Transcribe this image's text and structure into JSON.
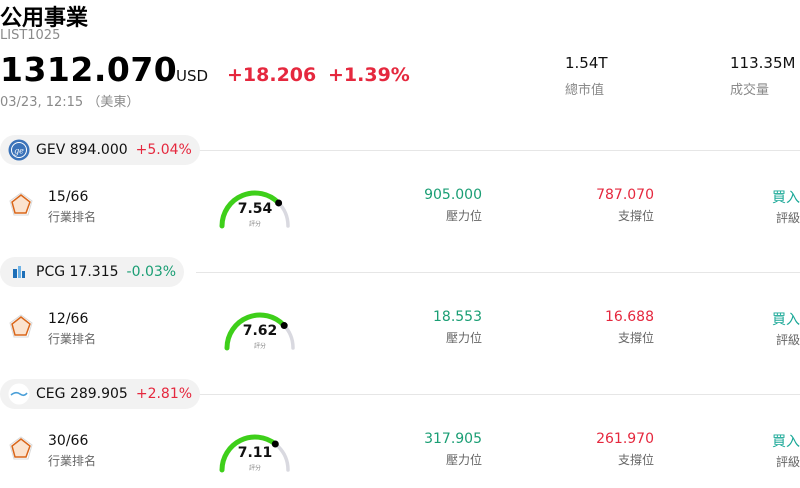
{
  "header": {
    "title": "公用事業",
    "code": "LIST1025",
    "price": "1312.070",
    "currency": "USD",
    "change": "+18.206",
    "change_pct": "+1.39%",
    "timestamp": "03/23, 12:15 （美東）",
    "market_cap_value": "1.54T",
    "market_cap_label": "總市值",
    "volume_value": "113.35M",
    "volume_label": "成交量"
  },
  "stocks": [
    {
      "ticker": "GEV",
      "price": "894.000",
      "change_pct": "+5.04%",
      "direction": "up",
      "logo": "ge-logo",
      "rank": "15/66",
      "rank_label": "行業排名",
      "score": "7.54",
      "score_fraction": 0.754,
      "score_label": "評分",
      "resistance": "905.000",
      "resistance_label": "壓力位",
      "support": "787.070",
      "support_label": "支撐位",
      "rating": "買入",
      "rating_label": "評級"
    },
    {
      "ticker": "PCG",
      "price": "17.315",
      "change_pct": "-0.03%",
      "direction": "down",
      "logo": "pcg-logo",
      "rank": "12/66",
      "rank_label": "行業排名",
      "score": "7.62",
      "score_fraction": 0.762,
      "score_label": "評分",
      "resistance": "18.553",
      "resistance_label": "壓力位",
      "support": "16.688",
      "support_label": "支撐位",
      "rating": "買入",
      "rating_label": "評級"
    },
    {
      "ticker": "CEG",
      "price": "289.905",
      "change_pct": "+2.81%",
      "direction": "up",
      "logo": "ceg-logo",
      "rank": "30/66",
      "rank_label": "行業排名",
      "score": "7.11",
      "score_fraction": 0.711,
      "score_label": "評分",
      "resistance": "317.905",
      "resistance_label": "壓力位",
      "support": "261.970",
      "support_label": "支撐位",
      "rating": "買入",
      "rating_label": "評級"
    }
  ],
  "colors": {
    "up": "#e5283e",
    "down": "#1a9e74",
    "gauge_fill": "#3ecf1a",
    "gauge_track": "#d9d9e0",
    "radar": "#d9661a",
    "rating": "#1aa897"
  }
}
